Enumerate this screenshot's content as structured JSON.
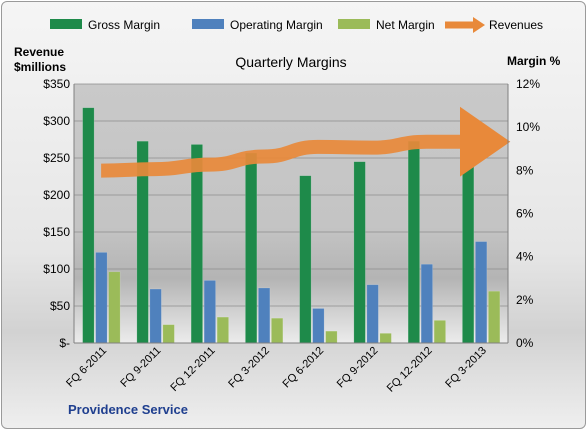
{
  "chart_data": {
    "type": "bar",
    "title": "Quarterly Margins",
    "ylabel_left": "Revenue\n$millions",
    "ylabel_right": "Margin %",
    "xlabel": "Providence Service",
    "categories": [
      "FQ 6-2011",
      "FQ 9-2011",
      "FQ 12-2011",
      "FQ 3-2012",
      "FQ 6-2012",
      "FQ 9-2012",
      "FQ 12-2012",
      "FQ 3-2013"
    ],
    "ylim_left": [
      0,
      350
    ],
    "ylim_right": [
      0,
      12
    ],
    "left_ticks": [
      "$-",
      "$50",
      "$100",
      "$150",
      "$200",
      "$250",
      "$300",
      "$350"
    ],
    "right_ticks": [
      "0%",
      "2%",
      "4%",
      "6%",
      "8%",
      "10%",
      "12%"
    ],
    "series": [
      {
        "name": "Gross Margin",
        "axis": "right",
        "color": "#1e8a4a",
        "values": [
          10.9,
          9.35,
          9.2,
          8.8,
          7.75,
          8.4,
          9.35,
          10.4
        ]
      },
      {
        "name": "Operating Margin",
        "axis": "right",
        "color": "#4f81bd",
        "values": [
          4.2,
          2.5,
          2.9,
          2.55,
          1.6,
          2.7,
          3.65,
          4.7
        ]
      },
      {
        "name": "Net Margin",
        "axis": "right",
        "color": "#9bbb59",
        "values": [
          3.3,
          0.85,
          1.2,
          1.15,
          0.55,
          0.45,
          1.05,
          2.4
        ]
      },
      {
        "name": "Revenues",
        "axis": "left",
        "color": "#e8893a",
        "type": "line",
        "values": [
          233,
          235,
          241,
          252,
          265,
          264,
          272,
          272
        ]
      }
    ],
    "grid": true,
    "legend": "top"
  }
}
